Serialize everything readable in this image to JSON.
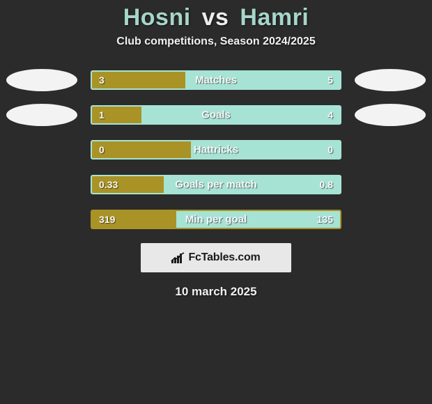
{
  "background_color": "#2b2b2b",
  "title": {
    "player1": "Hosni",
    "vs": "vs",
    "player2": "Hamri",
    "color_p1": "#a6d6c9",
    "color_p2": "#a6d6c9"
  },
  "subtitle": "Club competitions, Season 2024/2025",
  "colors": {
    "left": "#a99326",
    "right": "#a7e3d5",
    "border_default": "#a7e3d5"
  },
  "rows": [
    {
      "label": "Matches",
      "left_val": "3",
      "right_val": "5",
      "left_pct": 37.5,
      "right_pct": 62.5,
      "fill_side": "left",
      "border": "#a7e3d5",
      "show_left_avatar": true,
      "show_right_avatar": true
    },
    {
      "label": "Goals",
      "left_val": "1",
      "right_val": "4",
      "left_pct": 20.0,
      "right_pct": 80.0,
      "fill_side": "left",
      "border": "#a7e3d5",
      "show_left_avatar": true,
      "show_right_avatar": true
    },
    {
      "label": "Hattricks",
      "left_val": "0",
      "right_val": "0",
      "left_pct": 40.0,
      "right_pct": 60.0,
      "fill_side": "left",
      "border": "#a7e3d5",
      "show_left_avatar": false,
      "show_right_avatar": false
    },
    {
      "label": "Goals per match",
      "left_val": "0.33",
      "right_val": "0.8",
      "left_pct": 29.0,
      "right_pct": 71.0,
      "fill_side": "left",
      "border": "#a7e3d5",
      "show_left_avatar": false,
      "show_right_avatar": false
    },
    {
      "label": "Min per goal",
      "left_val": "319",
      "right_val": "135",
      "left_pct": 34.0,
      "right_pct": 66.0,
      "fill_side": "right",
      "border": "#a99326",
      "show_left_avatar": false,
      "show_right_avatar": false
    }
  ],
  "branding": {
    "text": "FcTables.com"
  },
  "date": "10 march 2025"
}
